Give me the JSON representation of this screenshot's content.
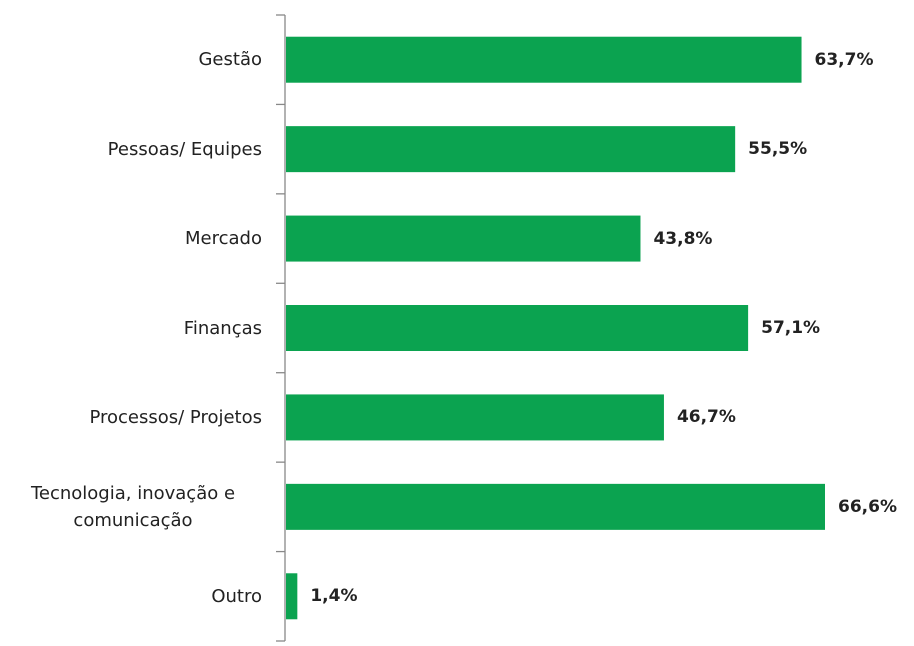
{
  "chart_data": {
    "type": "bar",
    "orientation": "horizontal",
    "categories": [
      "Gestão",
      "Pessoas/ Equipes",
      "Mercado",
      "Finanças",
      "Processos/ Projetos",
      "Tecnologia, inovação e comunicação",
      "Outro"
    ],
    "values": [
      63.7,
      55.5,
      43.8,
      57.1,
      46.7,
      66.6,
      1.4
    ],
    "value_labels": [
      "63,7%",
      "55,5%",
      "43,8%",
      "57,1%",
      "46,7%",
      "66,6%",
      "1,4%"
    ],
    "color": "#0ba350"
  }
}
